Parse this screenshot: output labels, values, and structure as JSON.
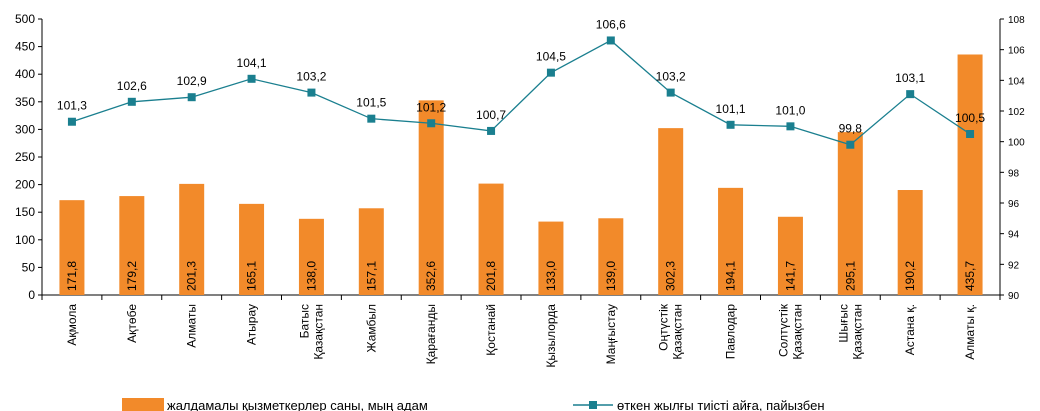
{
  "chart_data": {
    "type": "bar",
    "categories": [
      [
        "Ақмола"
      ],
      [
        "Ақтөбе"
      ],
      [
        "Алматы"
      ],
      [
        "Атырау"
      ],
      [
        "Батыс",
        "Қазақстан"
      ],
      [
        "Жамбыл"
      ],
      [
        "Қарағанды"
      ],
      [
        "Қостанай"
      ],
      [
        "Қызылорда"
      ],
      [
        "Маңғыстау"
      ],
      [
        "Оңтүстік",
        "Қазақстан"
      ],
      [
        "Павлодар"
      ],
      [
        "Солтүстік",
        "Қазақстан"
      ],
      [
        "Шығыс",
        "Қазақстан"
      ],
      [
        "Астана қ."
      ],
      [
        "Алматы қ."
      ]
    ],
    "series": [
      {
        "name": "жалдамалы қызметкерлер саны, мың адам",
        "type": "bar",
        "axis": "left",
        "values": [
          171.8,
          179.2,
          201.3,
          165.1,
          138.0,
          157.1,
          352.6,
          201.8,
          133.0,
          139.0,
          302.3,
          194.1,
          141.7,
          295.1,
          190.2,
          435.7
        ],
        "labels": [
          "171,8",
          "179,2",
          "201,3",
          "165,1",
          "138,0",
          "157,1",
          "352,6",
          "201,8",
          "133,0",
          "139,0",
          "302,3",
          "194,1",
          "141,7",
          "295,1",
          "190,2",
          "435,7"
        ],
        "color": "#f28a2a"
      },
      {
        "name": "өткен жылғы тиісті айға, пайызбен",
        "type": "line",
        "axis": "right",
        "values": [
          101.3,
          102.6,
          102.9,
          104.1,
          103.2,
          101.5,
          101.2,
          100.7,
          104.5,
          106.6,
          103.2,
          101.1,
          101.0,
          99.8,
          103.1,
          100.5
        ],
        "labels": [
          "101,3",
          "102,6",
          "102,9",
          "104,1",
          "103,2",
          "101,5",
          "101,2",
          "100,7",
          "104,5",
          "106,6",
          "103,2",
          "101,1",
          "101,0",
          "99,8",
          "103,1",
          "100,5"
        ],
        "color": "#1a7f8f"
      }
    ],
    "y_left": {
      "min": 0,
      "max": 500,
      "ticks": [
        0,
        50,
        100,
        150,
        200,
        250,
        300,
        350,
        400,
        450,
        500
      ]
    },
    "y_right": {
      "min": 90,
      "max": 108,
      "ticks": [
        90,
        92,
        94,
        96,
        98,
        100,
        102,
        104,
        106,
        108
      ]
    },
    "grid": false,
    "legend_position": "bottom"
  }
}
